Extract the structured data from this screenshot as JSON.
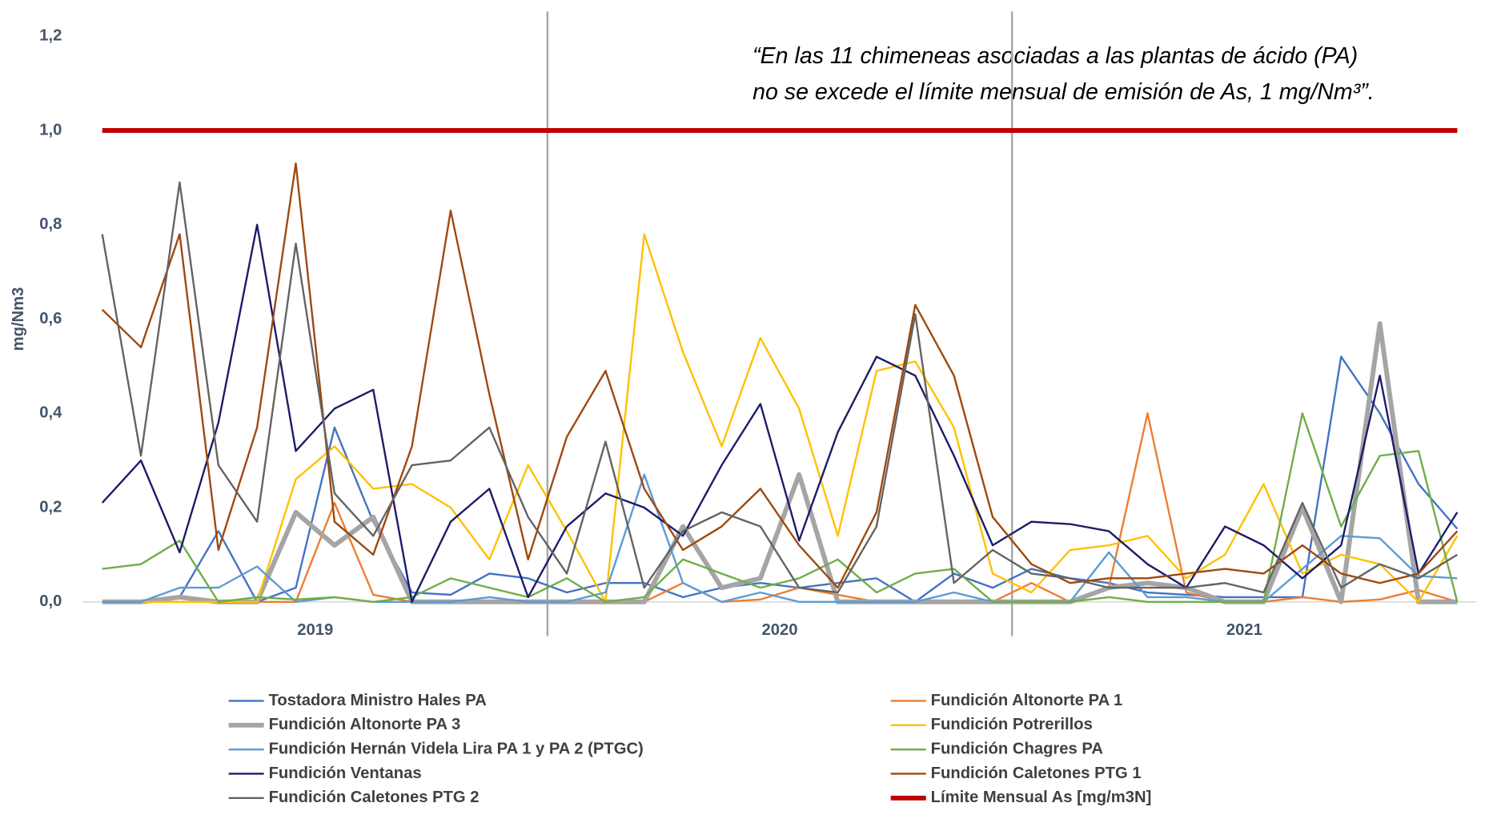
{
  "chart_data": {
    "type": "line",
    "annotation": [
      "“En las 11 chimeneas asociadas a las plantas de ácido (PA)",
      "no se excede el límite mensual de emisión de As, 1 mg/Nm³”."
    ],
    "y_label": "mg/Nm3",
    "groups": [
      "2019",
      "2020",
      "2021"
    ],
    "ylim": [
      0,
      1.2
    ],
    "yticks": [
      {
        "value": 0,
        "label": "0,0"
      },
      {
        "value": 0.2,
        "label": "0,2"
      },
      {
        "value": 0.4,
        "label": "0,4"
      },
      {
        "value": 0.6,
        "label": "0,6"
      },
      {
        "value": 0.8,
        "label": "0,8"
      },
      {
        "value": 1.0,
        "label": "1,0"
      },
      {
        "value": 1.2,
        "label": "1,2"
      }
    ],
    "grid": false,
    "legend": "bottom",
    "series": [
      {
        "name": "Tostadora Ministro Hales PA",
        "color": "#4472c4",
        "values": [
          0,
          0,
          0.01,
          0.15,
          0,
          0.03,
          0.37,
          0.17,
          0.02,
          0.015,
          0.06,
          0.05,
          0.02,
          0.04,
          0.04,
          0.01,
          0.03,
          0.04,
          0.03,
          0.04,
          0.05,
          0,
          0.06,
          0.03,
          0.07,
          0.05,
          0.04,
          0.02,
          0.015,
          0.01,
          0.01,
          0.01,
          0.52,
          0.4,
          0.25,
          0.155
        ]
      },
      {
        "name": "Fundición Altonorte PA 1",
        "color": "#ed7d31",
        "values": [
          0,
          0,
          0,
          0,
          0,
          0,
          0.21,
          0.015,
          0,
          0,
          0,
          0,
          0,
          0,
          0,
          0.04,
          0,
          0.005,
          0.03,
          0.015,
          0,
          0,
          0,
          0,
          0.04,
          0,
          0.03,
          0.4,
          0.02,
          0,
          0,
          0.01,
          0,
          0.005,
          0.025,
          0
        ]
      },
      {
        "name": "Fundición Altonorte PA 3",
        "color": "#a5a5a5",
        "thick": true,
        "values": [
          0,
          0,
          0.01,
          0,
          0,
          0.19,
          0.12,
          0.18,
          0,
          0,
          0,
          0,
          0,
          0,
          0,
          0.16,
          0.03,
          0.05,
          0.27,
          0,
          0,
          0,
          0,
          0,
          0,
          0,
          0.03,
          0.04,
          0.03,
          0,
          0,
          0.2,
          0,
          0.59,
          0,
          0
        ]
      },
      {
        "name": "Fundición Potrerillos",
        "color": "#ffc000",
        "values": [
          0,
          0,
          0,
          0,
          0,
          0.26,
          0.33,
          0.24,
          0.25,
          0.2,
          0.09,
          0.29,
          0.15,
          0,
          0.78,
          0.53,
          0.33,
          0.56,
          0.41,
          0.14,
          0.49,
          0.51,
          0.37,
          0.06,
          0.02,
          0.11,
          0.12,
          0.14,
          0.05,
          0.1,
          0.25,
          0.06,
          0.1,
          0.08,
          0,
          0.14
        ]
      },
      {
        "name": "Fundición Hernán Videla Lira PA 1 y PA 2 (PTGC)",
        "color": "#5b9bd5",
        "values": [
          0,
          0,
          0.03,
          0.03,
          0.075,
          0,
          0.01,
          0,
          0,
          0,
          0.01,
          0,
          0,
          0.02,
          0.27,
          0.04,
          0,
          0.02,
          0,
          0,
          0,
          0,
          0.02,
          0,
          0,
          0,
          0.105,
          0.01,
          0.01,
          0,
          0,
          0.07,
          0.14,
          0.135,
          0.055,
          0.05
        ]
      },
      {
        "name": "Fundición Chagres PA",
        "color": "#70ad47",
        "values": [
          0.07,
          0.08,
          0.13,
          0,
          0.01,
          0.005,
          0.01,
          0,
          0.01,
          0.05,
          0.03,
          0.01,
          0.05,
          0,
          0.01,
          0.09,
          0.06,
          0.03,
          0.05,
          0.09,
          0.02,
          0.06,
          0.07,
          0,
          0,
          0,
          0.01,
          0,
          0,
          0,
          0,
          0.4,
          0.16,
          0.31,
          0.32,
          0
        ]
      },
      {
        "name": "Fundición Ventanas",
        "color": "#1b1b6b",
        "values": [
          0.21,
          0.3,
          0.105,
          0.38,
          0.8,
          0.32,
          0.41,
          0.45,
          0,
          0.17,
          0.24,
          0.01,
          0.16,
          0.23,
          0.2,
          0.14,
          0.29,
          0.42,
          0.13,
          0.36,
          0.52,
          0.48,
          0.31,
          0.12,
          0.17,
          0.165,
          0.15,
          0.08,
          0.03,
          0.16,
          0.12,
          0.05,
          0.12,
          0.48,
          0.06,
          0.19
        ]
      },
      {
        "name": "Fundición Caletones PTG 1",
        "color": "#9e480e",
        "values": [
          0.62,
          0.54,
          0.78,
          0.11,
          0.37,
          0.93,
          0.17,
          0.1,
          0.33,
          0.83,
          0.44,
          0.09,
          0.35,
          0.49,
          0.24,
          0.11,
          0.16,
          0.24,
          0.12,
          0.03,
          0.19,
          0.63,
          0.48,
          0.18,
          0.08,
          0.04,
          0.05,
          0.05,
          0.06,
          0.07,
          0.06,
          0.12,
          0.06,
          0.04,
          0.06,
          0.15
        ]
      },
      {
        "name": "Fundición Caletones PTG 2",
        "color": "#636363",
        "values": [
          0.78,
          0.31,
          0.89,
          0.29,
          0.17,
          0.76,
          0.23,
          0.14,
          0.29,
          0.3,
          0.37,
          0.18,
          0.06,
          0.34,
          0.03,
          0.15,
          0.19,
          0.16,
          0.03,
          0.02,
          0.16,
          0.61,
          0.04,
          0.11,
          0.06,
          0.05,
          0.03,
          0.03,
          0.03,
          0.04,
          0.02,
          0.21,
          0.03,
          0.08,
          0.05,
          0.1
        ]
      },
      {
        "name": "Límite Mensual As [mg/m3N]",
        "color": "#c00000",
        "thick": true,
        "values": [
          1,
          1,
          1,
          1,
          1,
          1,
          1,
          1,
          1,
          1,
          1,
          1,
          1,
          1,
          1,
          1,
          1,
          1,
          1,
          1,
          1,
          1,
          1,
          1,
          1,
          1,
          1,
          1,
          1,
          1,
          1,
          1,
          1,
          1,
          1,
          1
        ]
      }
    ]
  }
}
